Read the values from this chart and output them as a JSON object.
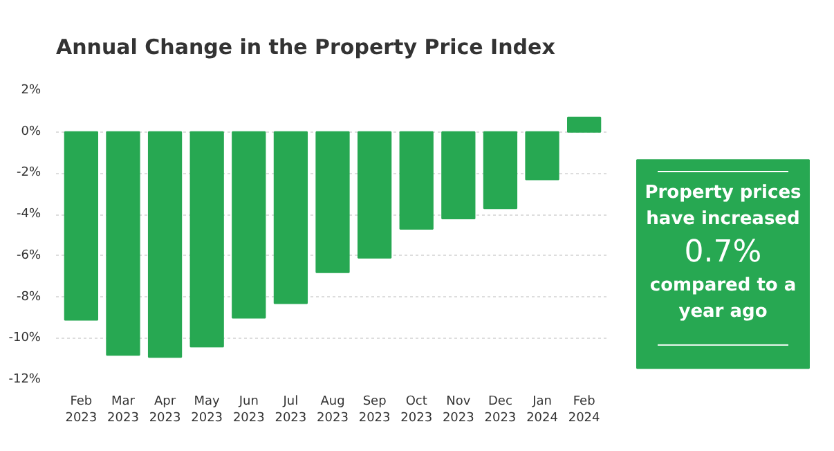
{
  "chart_data": [
    {
      "type": "bar",
      "title": "Annual Change in the Property Price Index",
      "categories": [
        "Feb 2023",
        "Mar 2023",
        "Apr 2023",
        "May 2023",
        "Jun 2023",
        "Jul 2023",
        "Aug 2023",
        "Sep 2023",
        "Oct 2023",
        "Nov 2023",
        "Dec 2023",
        "Jan 2024",
        "Feb 2024"
      ],
      "values": [
        -9.1,
        -10.8,
        -10.9,
        -10.4,
        -9.0,
        -8.3,
        -6.8,
        -6.1,
        -4.7,
        -4.2,
        -3.7,
        -2.3,
        0.7
      ],
      "color": "#27a852",
      "ylim": [
        -12,
        2
      ],
      "yticks": [
        {
          "value": 2,
          "label": "2%"
        },
        {
          "value": 0,
          "label": "0%"
        },
        {
          "value": -2,
          "label": "-2%"
        },
        {
          "value": -4,
          "label": "-4%"
        },
        {
          "value": -6,
          "label": "-6%"
        },
        {
          "value": -8,
          "label": "-8%"
        },
        {
          "value": -10,
          "label": "-10%"
        },
        {
          "value": -12,
          "label": "-12%"
        }
      ],
      "grid": "y"
    },
    {
      "type": "other",
      "color": "#27a852",
      "annotations": [
        "Property prices have increased",
        "0.7%",
        "compared to a year ago"
      ]
    }
  ]
}
